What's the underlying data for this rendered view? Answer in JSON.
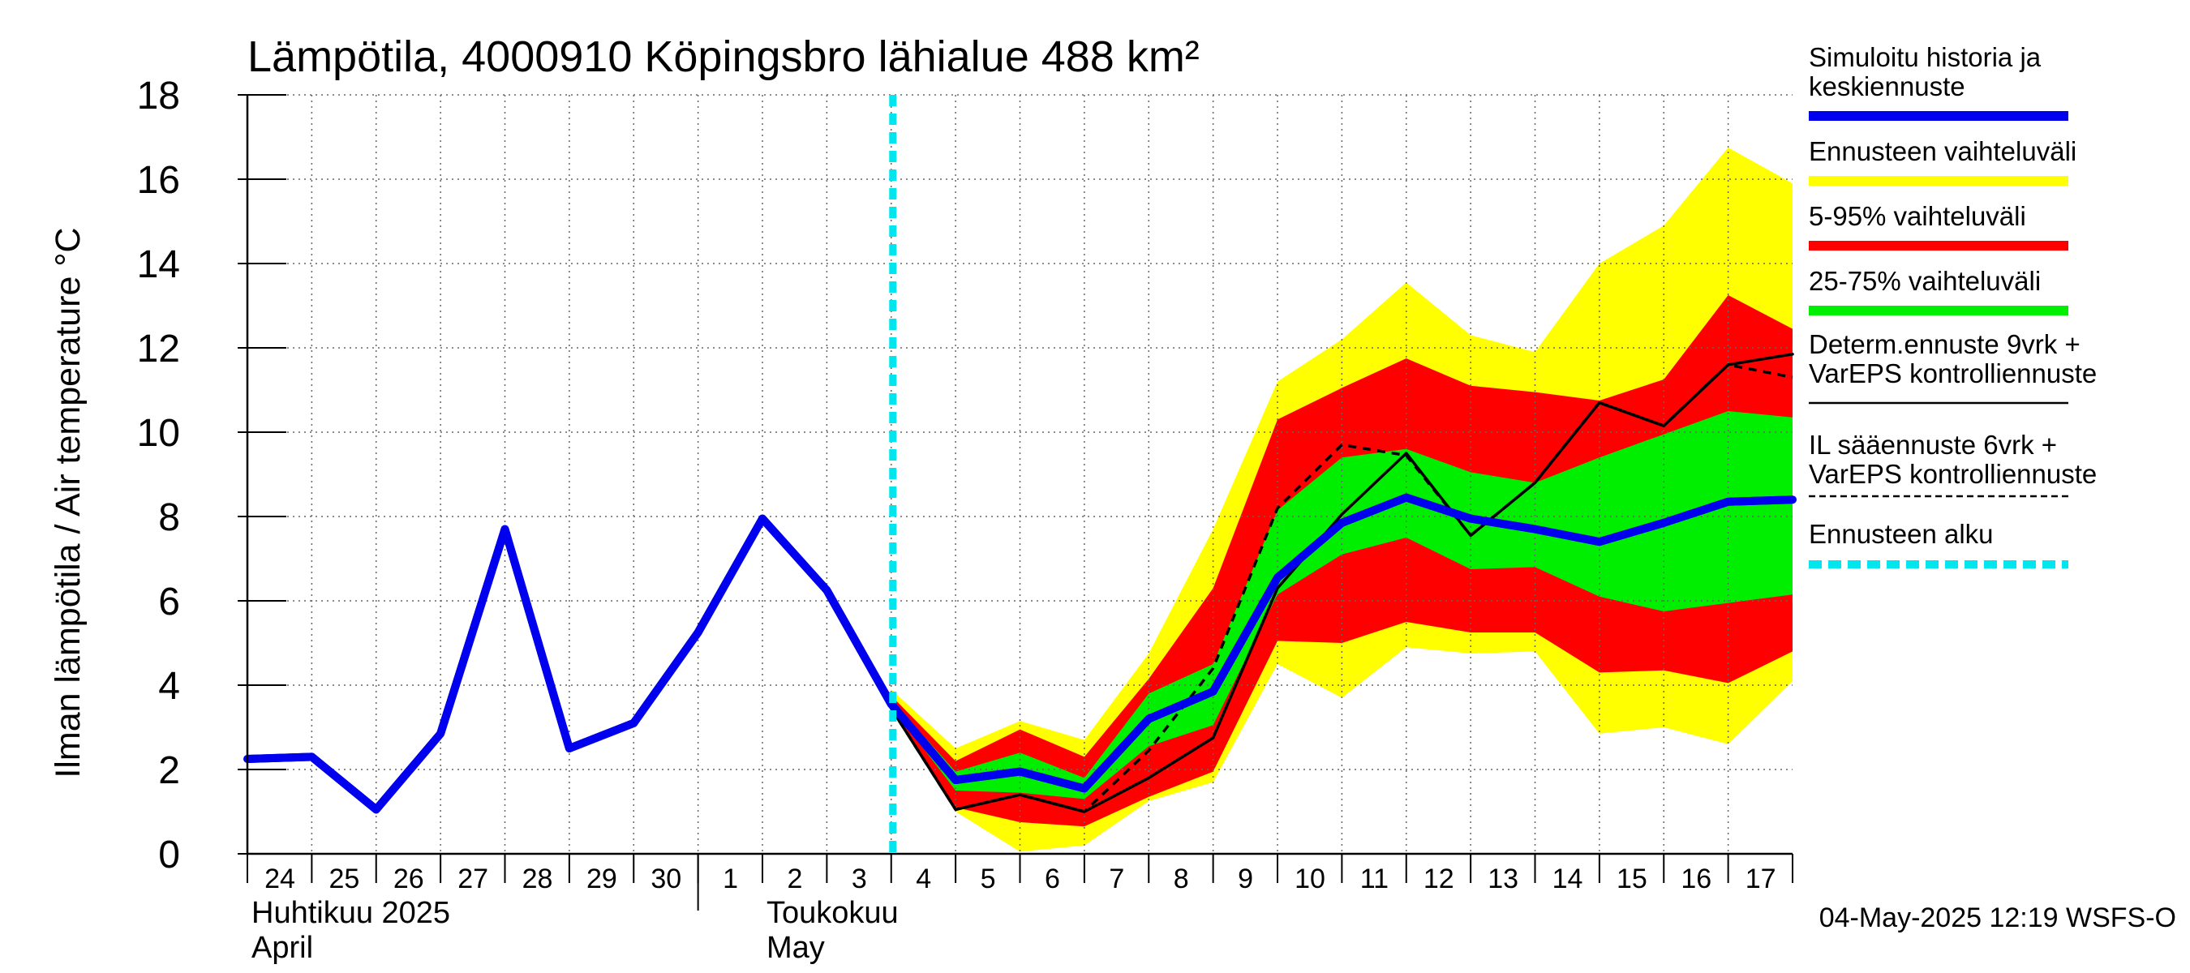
{
  "chart_data": {
    "type": "line",
    "title": "Lämpötila, 4000910 Köpingsbro lähialue 488 km²",
    "ylabel": "Ilman lämpötila / Air temperature   °C",
    "ylim": [
      0,
      18
    ],
    "yticks": [
      0,
      2,
      4,
      6,
      8,
      10,
      12,
      14,
      16,
      18
    ],
    "xlim": [
      0,
      24
    ],
    "day_labels": [
      "24",
      "25",
      "26",
      "27",
      "28",
      "29",
      "30",
      "1",
      "2",
      "3",
      "4",
      "5",
      "6",
      "7",
      "8",
      "9",
      "10",
      "11",
      "12",
      "13",
      "14",
      "15",
      "16",
      "17"
    ],
    "month_labels": [
      {
        "fi": "Huhtikuu  2025",
        "en": "April",
        "x": 0
      },
      {
        "fi": "Toukokuu",
        "en": "May",
        "x": 8
      }
    ],
    "month_divider_x": 7,
    "forecast_start_x": 10,
    "timestamp": "04-May-2025 12:19 WSFS-O",
    "legend": [
      {
        "label": "Simuloitu historia ja keskiennuste",
        "lines": [
          "Simuloitu historia ja",
          "keskiennuste"
        ],
        "color": "#0000ee",
        "style": "solid-thick"
      },
      {
        "label": "Ennusteen vaihteluväli",
        "lines": [
          "Ennusteen vaihteluväli"
        ],
        "color": "#ffff00",
        "style": "solid-thick"
      },
      {
        "label": "5-95% vaihteluväli",
        "lines": [
          "5-95% vaihteluväli"
        ],
        "color": "#ff0000",
        "style": "solid-thick"
      },
      {
        "label": "25-75% vaihteluväli",
        "lines": [
          "25-75% vaihteluväli"
        ],
        "color": "#00ee00",
        "style": "solid-thick"
      },
      {
        "label": "Determ.ennuste 9vrk + VarEPS kontrolliennuste",
        "lines": [
          "Determ.ennuste 9vrk +",
          "VarEPS kontrolliennuste"
        ],
        "color": "#000000",
        "style": "solid-thin"
      },
      {
        "label": "IL sääennuste 6vrk + VarEPS kontrolliennuste",
        "lines": [
          "IL sääennuste 6vrk  +",
          "  VarEPS kontrolliennuste"
        ],
        "color": "#000000",
        "style": "dashed-thin"
      },
      {
        "label": "Ennusteen alku",
        "lines": [
          "Ennusteen alku"
        ],
        "color": "#00e5ee",
        "style": "dashed-thick"
      }
    ],
    "series": [
      {
        "name": "Simuloitu historia ja keskiennuste",
        "color": "#0000ee",
        "points": [
          [
            0,
            2.25
          ],
          [
            1,
            2.3
          ],
          [
            2,
            1.05
          ],
          [
            3,
            2.85
          ],
          [
            4,
            7.7
          ],
          [
            5,
            2.5
          ],
          [
            6,
            3.1
          ],
          [
            7,
            5.25
          ],
          [
            8,
            7.95
          ],
          [
            9,
            6.25
          ],
          [
            10,
            3.55
          ],
          [
            11,
            1.75
          ],
          [
            12,
            1.95
          ],
          [
            13,
            1.55
          ],
          [
            14,
            3.2
          ],
          [
            15,
            3.85
          ],
          [
            16,
            6.55
          ],
          [
            17,
            7.85
          ],
          [
            18,
            8.45
          ],
          [
            19,
            7.95
          ],
          [
            20,
            7.7
          ],
          [
            21,
            7.4
          ],
          [
            22,
            7.85
          ],
          [
            23,
            8.35
          ],
          [
            24,
            8.4
          ]
        ]
      },
      {
        "name": "Determ.ennuste 9vrk + VarEPS kontrolliennuste",
        "color": "#000000",
        "points": [
          [
            8,
            7.95
          ],
          [
            9,
            6.25
          ],
          [
            10,
            3.45
          ],
          [
            11,
            1.05
          ],
          [
            12,
            1.4
          ],
          [
            13,
            1.0
          ],
          [
            14,
            1.8
          ],
          [
            15,
            2.75
          ],
          [
            16,
            6.3
          ],
          [
            17,
            8.05
          ],
          [
            18,
            9.5
          ],
          [
            19,
            7.55
          ],
          [
            20,
            8.8
          ],
          [
            21,
            10.7
          ],
          [
            22,
            10.15
          ],
          [
            23,
            11.6
          ],
          [
            24,
            11.85
          ]
        ]
      },
      {
        "name": "IL sääennuste 6vrk + VarEPS kontrolliennuste",
        "color": "#000000",
        "dashed": true,
        "points": [
          [
            10,
            3.45
          ],
          [
            11,
            1.05
          ],
          [
            12,
            1.4
          ],
          [
            13,
            1.0
          ],
          [
            14,
            2.45
          ],
          [
            15,
            4.4
          ],
          [
            16,
            8.2
          ],
          [
            17,
            9.7
          ],
          [
            18,
            9.45
          ],
          [
            19,
            7.55
          ],
          [
            20,
            8.8
          ],
          [
            21,
            10.7
          ],
          [
            22,
            10.15
          ],
          [
            23,
            11.6
          ],
          [
            24,
            11.3
          ]
        ]
      }
    ],
    "bands": [
      {
        "name": "Ennusteen vaihteluväli",
        "color": "#ffff00",
        "x": [
          10,
          11,
          12,
          13,
          14,
          15,
          16,
          17,
          18,
          19,
          20,
          21,
          22,
          23,
          24
        ],
        "upper": [
          3.9,
          2.5,
          3.15,
          2.7,
          4.75,
          7.7,
          11.2,
          12.2,
          13.55,
          12.3,
          11.9,
          14.0,
          14.9,
          16.75,
          15.9
        ],
        "lower": [
          3.4,
          1.0,
          0.05,
          0.2,
          1.25,
          1.7,
          4.5,
          3.7,
          4.9,
          4.75,
          4.8,
          2.85,
          3.0,
          2.6,
          4.1
        ]
      },
      {
        "name": "5-95% vaihteluväli",
        "color": "#ff0000",
        "x": [
          10,
          11,
          12,
          13,
          14,
          15,
          16,
          17,
          18,
          19,
          20,
          21,
          22,
          23,
          24
        ],
        "upper": [
          3.75,
          2.2,
          2.95,
          2.3,
          4.15,
          6.3,
          10.3,
          11.05,
          11.75,
          11.1,
          10.95,
          10.75,
          11.25,
          13.25,
          12.45
        ],
        "lower": [
          3.45,
          1.1,
          0.75,
          0.65,
          1.35,
          1.95,
          5.05,
          5.0,
          5.5,
          5.25,
          5.25,
          4.3,
          4.35,
          4.05,
          4.8
        ]
      },
      {
        "name": "25-75% vaihteluväli",
        "color": "#00ee00",
        "x": [
          10,
          11,
          12,
          13,
          14,
          15,
          16,
          17,
          18,
          19,
          20,
          21,
          22,
          23,
          24
        ],
        "upper": [
          3.65,
          1.95,
          2.4,
          1.8,
          3.8,
          4.5,
          8.15,
          9.4,
          9.6,
          9.05,
          8.8,
          9.4,
          9.95,
          10.5,
          10.35
        ],
        "lower": [
          3.5,
          1.5,
          1.45,
          1.3,
          2.55,
          3.05,
          6.15,
          7.1,
          7.5,
          6.75,
          6.8,
          6.1,
          5.75,
          5.95,
          6.15
        ]
      }
    ]
  }
}
